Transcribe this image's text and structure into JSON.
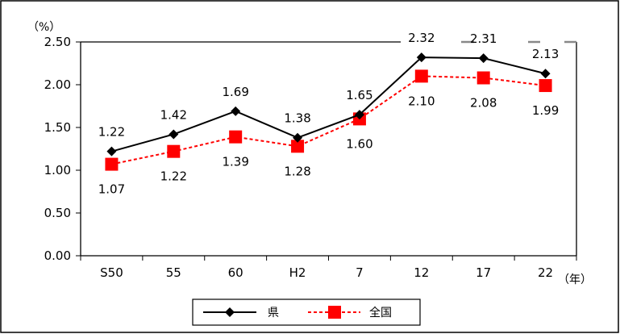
{
  "chart_data": {
    "type": "line",
    "categories": [
      "S50",
      "55",
      "60",
      "H2",
      "7",
      "12",
      "17",
      "22"
    ],
    "series": [
      {
        "name": "県",
        "values": [
          1.22,
          1.42,
          1.69,
          1.38,
          1.65,
          2.32,
          2.31,
          2.13
        ],
        "color": "#000000",
        "marker": "diamond",
        "line": "solid"
      },
      {
        "name": "全国",
        "values": [
          1.07,
          1.22,
          1.39,
          1.28,
          1.6,
          2.1,
          2.08,
          1.99
        ],
        "color": "#ff0000",
        "marker": "square",
        "line": "dashed"
      }
    ],
    "ylim": [
      0,
      2.5
    ],
    "yticks": [
      "0.00",
      "0.50",
      "1.00",
      "1.50",
      "2.00",
      "2.50"
    ],
    "y_unit": "（%）",
    "x_unit": "（年）",
    "grid": false,
    "legend_position": "bottom-center",
    "data_labels": {
      "県": [
        "1.22",
        "1.42",
        "1.69",
        "1.38",
        "1.65",
        "2.32",
        "2.31",
        "2.13"
      ],
      "全国": [
        "1.07",
        "1.22",
        "1.39",
        "1.28",
        "1.60",
        "2.10",
        "2.08",
        "1.99"
      ]
    }
  }
}
